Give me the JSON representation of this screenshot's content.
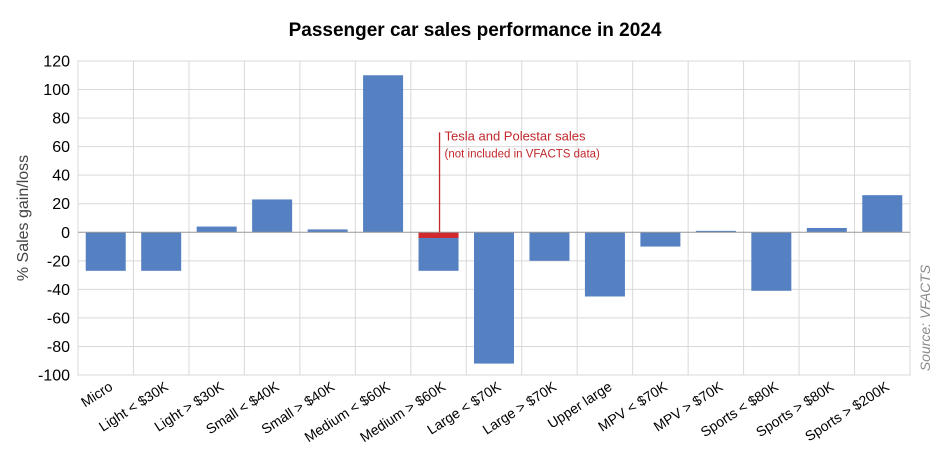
{
  "chart_data": {
    "type": "bar",
    "title": "Passenger car sales performance in 2024",
    "ylabel": "% Sales gain/loss",
    "xlabel": "",
    "ylim": [
      -100,
      120
    ],
    "yticks": [
      120,
      100,
      80,
      60,
      40,
      20,
      0,
      -20,
      -40,
      -60,
      -80,
      -100
    ],
    "grid": true,
    "categories": [
      "Micro",
      "Light < $30K",
      "Light > $30K",
      "Small < $40K",
      "Small > $40K",
      "Medium < $60K",
      "Medium > $60K",
      "Large < $70K",
      "Large > $70K",
      "Upper large",
      "MPV < $70K",
      "MPV > $70K",
      "Sports < $80K",
      "Sports > $80K",
      "Sports > $200K"
    ],
    "values": [
      -27,
      -27,
      4,
      23,
      2,
      110,
      -27,
      -92,
      -20,
      -45,
      -10,
      1,
      -41,
      3,
      26
    ],
    "highlight": {
      "category": "Medium > $60K",
      "value": -4,
      "color": "#d0282c"
    },
    "annotation": {
      "line1": "Tesla and Polestar sales",
      "line2": "(not included in VFACTS data)"
    },
    "source": "Source: VFACTS",
    "colors": {
      "bar": "#5580c2",
      "grid": "#d9d9d9",
      "zero_line": "#999999",
      "annotation": "#c0282c"
    }
  }
}
